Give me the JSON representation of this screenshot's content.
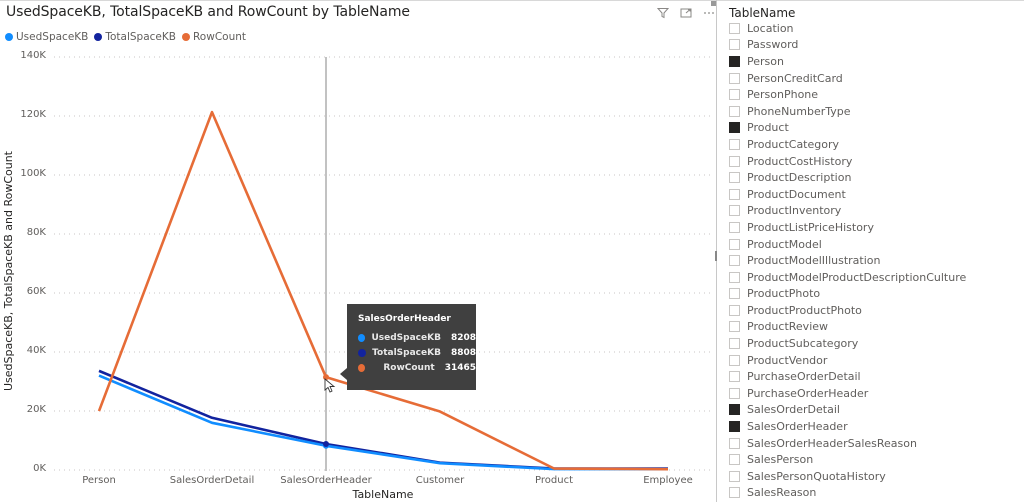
{
  "visual": {
    "title": "UsedSpaceKB, TotalSpaceKB and RowCount by TableName",
    "header_icons": [
      "filter-icon",
      "focus-mode-icon",
      "more-options-icon"
    ],
    "legend": [
      {
        "label": "UsedSpaceKB",
        "color": "#118DFF"
      },
      {
        "label": "TotalSpaceKB",
        "color": "#12239E"
      },
      {
        "label": "RowCount",
        "color": "#E66C37"
      }
    ],
    "y_axis_label": "UsedSpaceKB, TotalSpaceKB and RowCount",
    "x_axis_label": "TableName",
    "y_ticks": [
      "140K",
      "120K",
      "100K",
      "80K",
      "60K",
      "40K",
      "20K",
      "0K"
    ],
    "x_ticks": [
      "Person",
      "SalesOrderDetail",
      "SalesOrderHeader",
      "Customer",
      "Product",
      "Employee"
    ],
    "tooltip": {
      "title": "SalesOrderHeader",
      "rows": [
        {
          "name": "UsedSpaceKB",
          "value": "8208",
          "color": "#118DFF"
        },
        {
          "name": "TotalSpaceKB",
          "value": "8808",
          "color": "#12239E"
        },
        {
          "name": "RowCount",
          "value": "31465",
          "color": "#E66C37"
        }
      ]
    }
  },
  "chart_data": {
    "type": "line",
    "title": "UsedSpaceKB, TotalSpaceKB and RowCount by TableName",
    "xlabel": "TableName",
    "ylabel": "UsedSpaceKB, TotalSpaceKB and RowCount",
    "categories": [
      "Person",
      "SalesOrderDetail",
      "SalesOrderHeader",
      "Customer",
      "Product",
      "Employee"
    ],
    "series": [
      {
        "name": "UsedSpaceKB",
        "color": "#118DFF",
        "values": [
          32000,
          16000,
          8208,
          2300,
          300,
          300
        ]
      },
      {
        "name": "TotalSpaceKB",
        "color": "#12239E",
        "values": [
          33600,
          17700,
          8808,
          2500,
          500,
          500
        ]
      },
      {
        "name": "RowCount",
        "color": "#E66C37",
        "values": [
          19972,
          121317,
          31465,
          19820,
          504,
          290
        ]
      }
    ],
    "ylim": [
      0,
      140000
    ],
    "y_ticks": [
      0,
      20000,
      40000,
      60000,
      80000,
      100000,
      120000,
      140000
    ],
    "grid": "horizontal dotted",
    "legend_position": "top-left",
    "hover_category": "SalesOrderHeader"
  },
  "slicer": {
    "title": "TableName",
    "items": [
      {
        "label": "Location",
        "checked": false
      },
      {
        "label": "Password",
        "checked": false
      },
      {
        "label": "Person",
        "checked": true
      },
      {
        "label": "PersonCreditCard",
        "checked": false
      },
      {
        "label": "PersonPhone",
        "checked": false
      },
      {
        "label": "PhoneNumberType",
        "checked": false
      },
      {
        "label": "Product",
        "checked": true
      },
      {
        "label": "ProductCategory",
        "checked": false
      },
      {
        "label": "ProductCostHistory",
        "checked": false
      },
      {
        "label": "ProductDescription",
        "checked": false
      },
      {
        "label": "ProductDocument",
        "checked": false
      },
      {
        "label": "ProductInventory",
        "checked": false
      },
      {
        "label": "ProductListPriceHistory",
        "checked": false
      },
      {
        "label": "ProductModel",
        "checked": false
      },
      {
        "label": "ProductModelIllustration",
        "checked": false
      },
      {
        "label": "ProductModelProductDescriptionCulture",
        "checked": false
      },
      {
        "label": "ProductPhoto",
        "checked": false
      },
      {
        "label": "ProductProductPhoto",
        "checked": false
      },
      {
        "label": "ProductReview",
        "checked": false
      },
      {
        "label": "ProductSubcategory",
        "checked": false
      },
      {
        "label": "ProductVendor",
        "checked": false
      },
      {
        "label": "PurchaseOrderDetail",
        "checked": false
      },
      {
        "label": "PurchaseOrderHeader",
        "checked": false
      },
      {
        "label": "SalesOrderDetail",
        "checked": true
      },
      {
        "label": "SalesOrderHeader",
        "checked": true
      },
      {
        "label": "SalesOrderHeaderSalesReason",
        "checked": false
      },
      {
        "label": "SalesPerson",
        "checked": false
      },
      {
        "label": "SalesPersonQuotaHistory",
        "checked": false
      },
      {
        "label": "SalesReason",
        "checked": false
      }
    ]
  }
}
